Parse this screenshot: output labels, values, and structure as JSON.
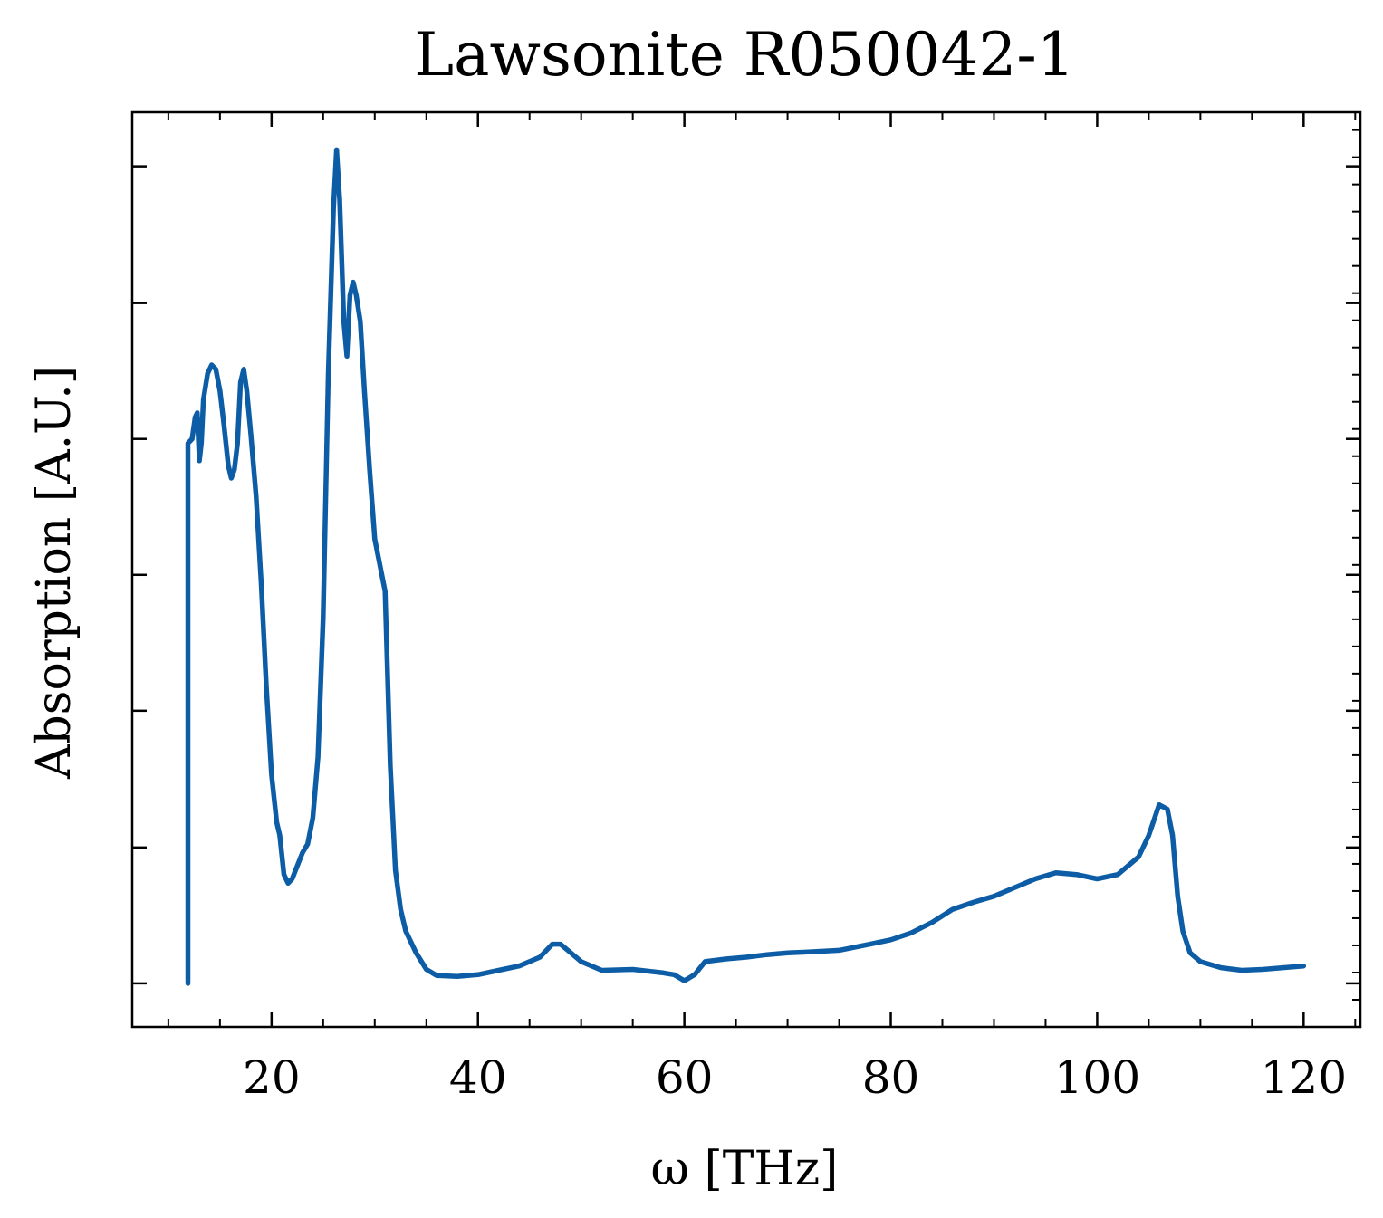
{
  "chart_data": {
    "type": "line",
    "title": "Lawsonite R050042-1",
    "xlabel": "ω [THz]",
    "ylabel": "Absorption [A.U.]",
    "xlim": [
      6.5,
      125.5
    ],
    "ylim": [
      -0.05,
      1.0
    ],
    "x_ticks": [
      20,
      40,
      60,
      80,
      100,
      120
    ],
    "x_tick_labels": [
      "20",
      "40",
      "60",
      "80",
      "100",
      "120"
    ],
    "y_ticks": [
      0.0,
      0.156,
      0.313,
      0.469,
      0.625,
      0.781,
      0.938
    ],
    "y_tick_labels_visible": false,
    "grid": false,
    "legend": "none",
    "series": [
      {
        "color": "#0c5da5",
        "points": [
          [
            11.9,
            0.0
          ],
          [
            11.9,
            0.62
          ],
          [
            12.3,
            0.625
          ],
          [
            12.6,
            0.65
          ],
          [
            12.8,
            0.655
          ],
          [
            13.0,
            0.6
          ],
          [
            13.2,
            0.62
          ],
          [
            13.4,
            0.67
          ],
          [
            13.8,
            0.7
          ],
          [
            14.2,
            0.71
          ],
          [
            14.6,
            0.705
          ],
          [
            15.0,
            0.68
          ],
          [
            15.4,
            0.64
          ],
          [
            15.8,
            0.595
          ],
          [
            16.1,
            0.58
          ],
          [
            16.4,
            0.59
          ],
          [
            16.7,
            0.62
          ],
          [
            17.0,
            0.69
          ],
          [
            17.3,
            0.705
          ],
          [
            17.6,
            0.68
          ],
          [
            18.0,
            0.63
          ],
          [
            18.5,
            0.56
          ],
          [
            19.0,
            0.46
          ],
          [
            19.5,
            0.34
          ],
          [
            20.0,
            0.24
          ],
          [
            20.5,
            0.185
          ],
          [
            20.8,
            0.17
          ],
          [
            21.2,
            0.125
          ],
          [
            21.6,
            0.115
          ],
          [
            22.0,
            0.12
          ],
          [
            22.5,
            0.135
          ],
          [
            23.0,
            0.15
          ],
          [
            23.5,
            0.16
          ],
          [
            24.0,
            0.19
          ],
          [
            24.5,
            0.26
          ],
          [
            25.0,
            0.42
          ],
          [
            25.5,
            0.7
          ],
          [
            26.0,
            0.89
          ],
          [
            26.3,
            0.957
          ],
          [
            26.6,
            0.9
          ],
          [
            27.0,
            0.76
          ],
          [
            27.3,
            0.72
          ],
          [
            27.6,
            0.79
          ],
          [
            27.9,
            0.805
          ],
          [
            28.2,
            0.79
          ],
          [
            28.6,
            0.76
          ],
          [
            29.0,
            0.68
          ],
          [
            29.5,
            0.59
          ],
          [
            30.0,
            0.51
          ],
          [
            30.5,
            0.48
          ],
          [
            31.0,
            0.45
          ],
          [
            31.5,
            0.25
          ],
          [
            32.0,
            0.13
          ],
          [
            32.5,
            0.085
          ],
          [
            33.0,
            0.06
          ],
          [
            34.0,
            0.035
          ],
          [
            35.0,
            0.016
          ],
          [
            36.0,
            0.009
          ],
          [
            38.0,
            0.008
          ],
          [
            40.0,
            0.01
          ],
          [
            42.0,
            0.015
          ],
          [
            44.0,
            0.02
          ],
          [
            46.0,
            0.03
          ],
          [
            47.2,
            0.045
          ],
          [
            48.0,
            0.045
          ],
          [
            49.0,
            0.035
          ],
          [
            50.0,
            0.025
          ],
          [
            52.0,
            0.015
          ],
          [
            55.0,
            0.016
          ],
          [
            58.0,
            0.012
          ],
          [
            59.0,
            0.01
          ],
          [
            60.0,
            0.003
          ],
          [
            61.0,
            0.01
          ],
          [
            62.0,
            0.025
          ],
          [
            64.0,
            0.028
          ],
          [
            66.0,
            0.03
          ],
          [
            68.0,
            0.033
          ],
          [
            70.0,
            0.035
          ],
          [
            72.0,
            0.036
          ],
          [
            75.0,
            0.038
          ],
          [
            78.0,
            0.045
          ],
          [
            80.0,
            0.05
          ],
          [
            82.0,
            0.058
          ],
          [
            84.0,
            0.07
          ],
          [
            86.0,
            0.085
          ],
          [
            88.0,
            0.093
          ],
          [
            90.0,
            0.1
          ],
          [
            92.0,
            0.11
          ],
          [
            94.0,
            0.12
          ],
          [
            96.0,
            0.127
          ],
          [
            98.0,
            0.125
          ],
          [
            100.0,
            0.12
          ],
          [
            102.0,
            0.125
          ],
          [
            104.0,
            0.145
          ],
          [
            105.0,
            0.17
          ],
          [
            106.0,
            0.205
          ],
          [
            106.8,
            0.2
          ],
          [
            107.3,
            0.17
          ],
          [
            107.8,
            0.1
          ],
          [
            108.3,
            0.06
          ],
          [
            109.0,
            0.035
          ],
          [
            110.0,
            0.025
          ],
          [
            112.0,
            0.018
          ],
          [
            114.0,
            0.015
          ],
          [
            116.0,
            0.016
          ],
          [
            118.0,
            0.018
          ],
          [
            120.0,
            0.02
          ]
        ]
      }
    ]
  }
}
